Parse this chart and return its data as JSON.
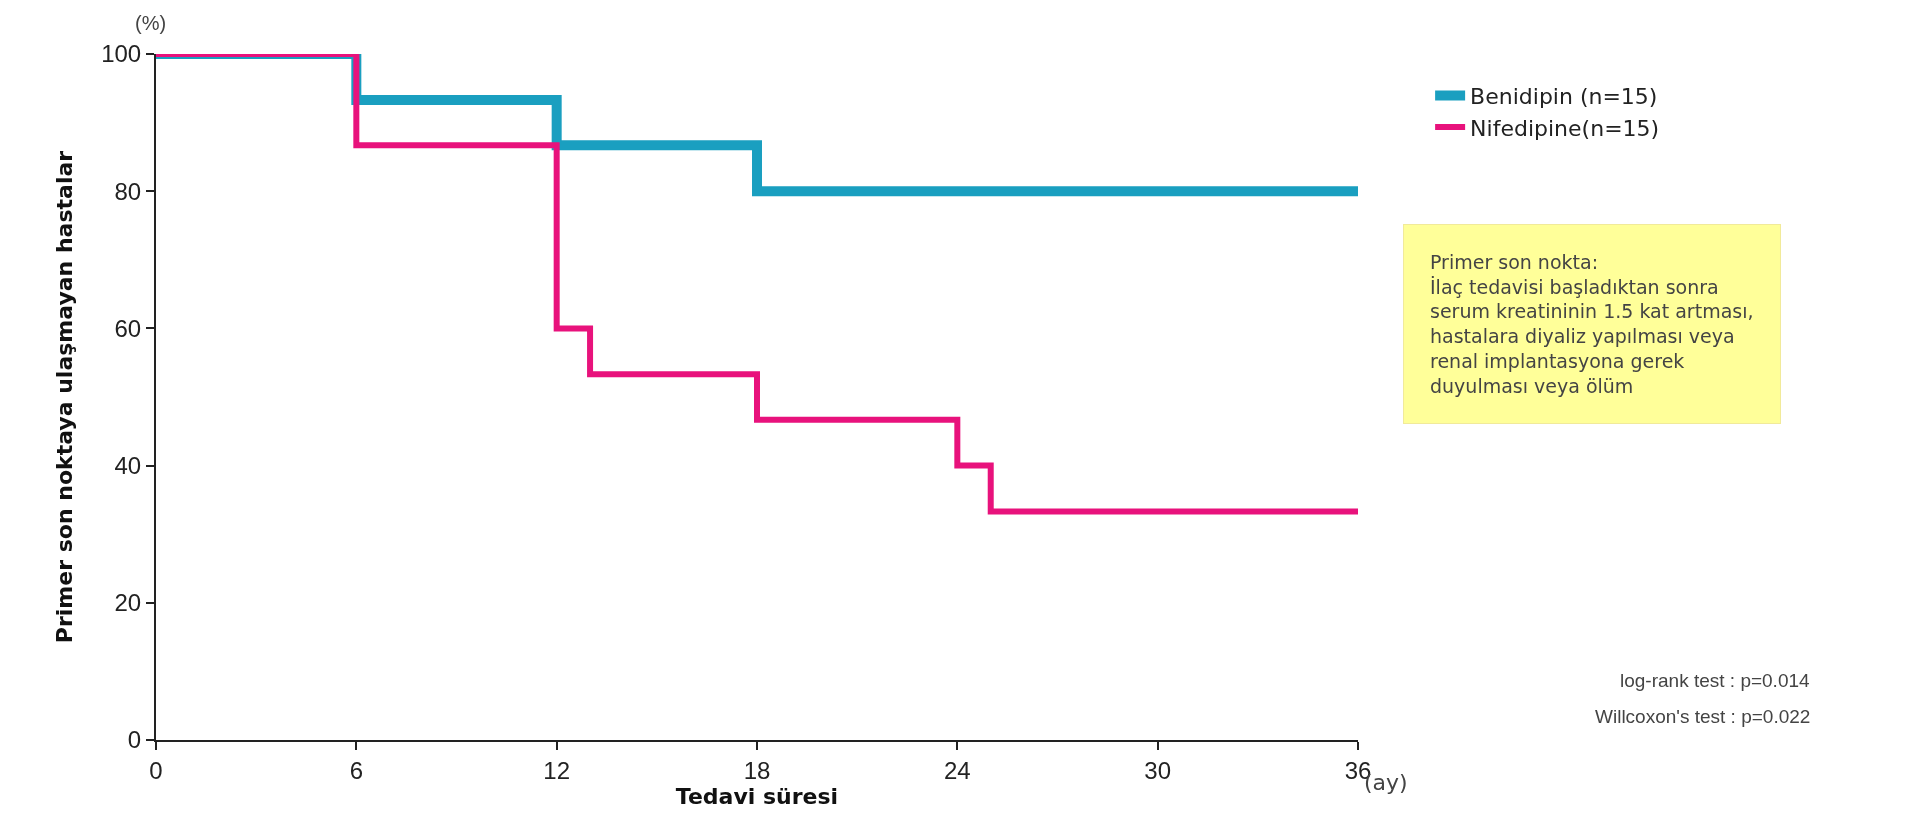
{
  "chart_data": {
    "type": "step",
    "xlabel": "Tedavi süresi",
    "ylabel": "Primer son noktaya ulaşmayan hastalar",
    "xlim": [
      0,
      36
    ],
    "xticks": [
      0,
      6,
      12,
      18,
      24,
      30,
      36
    ],
    "ylim": [
      0,
      100
    ],
    "yticks": [
      0,
      20,
      40,
      60,
      80,
      100
    ],
    "grid": false,
    "legend": "top right",
    "marker": "none",
    "line_style": "solid",
    "series": [
      {
        "name": "Benidipin (n=15)",
        "color": "#1a9fc0",
        "x": [
          0,
          6,
          12,
          18,
          36
        ],
        "values": [
          100,
          93.3,
          86.7,
          80,
          80
        ]
      },
      {
        "name": "Nifedipine(n=15)",
        "color": "#e8127c",
        "x": [
          0,
          6,
          12,
          13,
          18,
          24,
          25,
          36
        ],
        "values": [
          100,
          86.7,
          60,
          53.3,
          46.7,
          40,
          33.3,
          33.3
        ]
      }
    ],
    "annotations": [
      "(%)",
      "(ay)",
      "Primer son nokta:\nİlaç tedavisi başladıktan sonra\nserum kreatininin 1.5 kat artması,\nhastalara diyaliz yapılması veya\nrenal implantasyona gerek\nduyulması veya ölüm",
      "log-rank test : p=0.014",
      "Willcoxon's test : p=0.022"
    ]
  }
}
